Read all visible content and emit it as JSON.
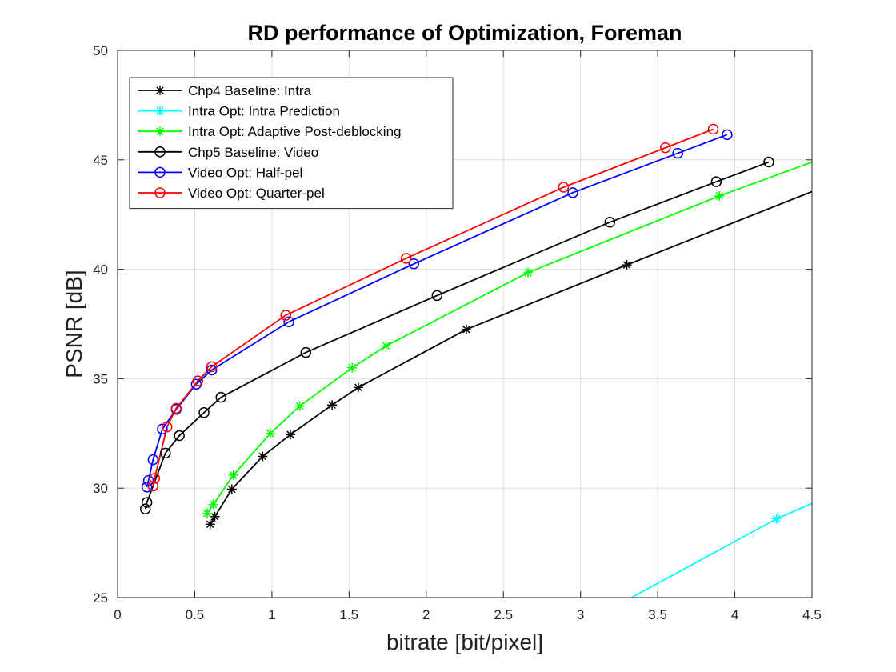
{
  "chart_data": {
    "type": "line",
    "title": "RD performance of Optimization, Foreman",
    "xlabel": "bitrate [bit/pixel]",
    "ylabel": "PSNR [dB]",
    "xlim": [
      0,
      4.5
    ],
    "ylim": [
      25,
      50
    ],
    "xticks": [
      0,
      0.5,
      1,
      1.5,
      2,
      2.5,
      3,
      3.5,
      4,
      4.5
    ],
    "xtick_labels": [
      "0",
      "0.5",
      "1",
      "1.5",
      "2",
      "2.5",
      "3",
      "3.5",
      "4",
      "4.5"
    ],
    "yticks": [
      25,
      30,
      35,
      40,
      45,
      50
    ],
    "ytick_labels": [
      "25",
      "30",
      "35",
      "40",
      "45",
      "50"
    ],
    "grid": true,
    "legend_position": "top-left",
    "series": [
      {
        "name": "Chp4 Baseline: Intra",
        "color": "#000000",
        "marker": "asterisk",
        "points": [
          [
            0.6,
            28.35
          ],
          [
            0.63,
            28.7
          ],
          [
            0.74,
            29.95
          ],
          [
            0.94,
            31.45
          ],
          [
            1.12,
            32.45
          ],
          [
            1.39,
            33.8
          ],
          [
            1.56,
            34.6
          ],
          [
            2.26,
            37.25
          ],
          [
            3.3,
            40.2
          ],
          [
            4.5,
            43.55
          ]
        ]
      },
      {
        "name": "Intra Opt: Intra Prediction",
        "color": "#00ffff",
        "marker": "asterisk",
        "points": [
          [
            3.33,
            25.0
          ],
          [
            4.27,
            28.6
          ],
          [
            4.5,
            29.3
          ]
        ]
      },
      {
        "name": "Intra Opt: Adaptive Post-deblocking",
        "color": "#00ff00",
        "marker": "asterisk",
        "points": [
          [
            0.58,
            28.85
          ],
          [
            0.62,
            29.25
          ],
          [
            0.75,
            30.6
          ],
          [
            0.99,
            32.5
          ],
          [
            1.18,
            33.75
          ],
          [
            1.52,
            35.5
          ],
          [
            1.74,
            36.5
          ],
          [
            2.66,
            39.85
          ],
          [
            3.9,
            43.35
          ],
          [
            4.5,
            44.9
          ]
        ]
      },
      {
        "name": "Chp5 Baseline: Video",
        "color": "#000000",
        "marker": "circle",
        "points": [
          [
            0.18,
            29.05
          ],
          [
            0.19,
            29.35
          ],
          [
            0.31,
            31.6
          ],
          [
            0.4,
            32.4
          ],
          [
            0.56,
            33.45
          ],
          [
            0.67,
            34.15
          ],
          [
            1.22,
            36.2
          ],
          [
            2.07,
            38.8
          ],
          [
            3.19,
            42.15
          ],
          [
            3.88,
            44.0
          ],
          [
            4.22,
            44.9
          ]
        ]
      },
      {
        "name": "Video Opt: Half-pel",
        "color": "#0000ff",
        "marker": "circle",
        "points": [
          [
            0.19,
            30.05
          ],
          [
            0.2,
            30.35
          ],
          [
            0.23,
            31.3
          ],
          [
            0.29,
            32.7
          ],
          [
            0.38,
            33.6
          ],
          [
            0.51,
            34.75
          ],
          [
            0.61,
            35.4
          ],
          [
            1.11,
            37.6
          ],
          [
            1.92,
            40.25
          ],
          [
            2.95,
            43.5
          ],
          [
            3.63,
            45.3
          ],
          [
            3.95,
            46.15
          ]
        ]
      },
      {
        "name": "Video Opt: Quarter-pel",
        "color": "#ff0000",
        "marker": "circle",
        "points": [
          [
            0.23,
            30.1
          ],
          [
            0.24,
            30.45
          ],
          [
            0.32,
            32.8
          ],
          [
            0.38,
            33.65
          ],
          [
            0.52,
            34.9
          ],
          [
            0.61,
            35.55
          ],
          [
            1.09,
            37.9
          ],
          [
            1.87,
            40.5
          ],
          [
            2.89,
            43.75
          ],
          [
            3.55,
            45.55
          ],
          [
            3.86,
            46.4
          ]
        ]
      }
    ]
  }
}
